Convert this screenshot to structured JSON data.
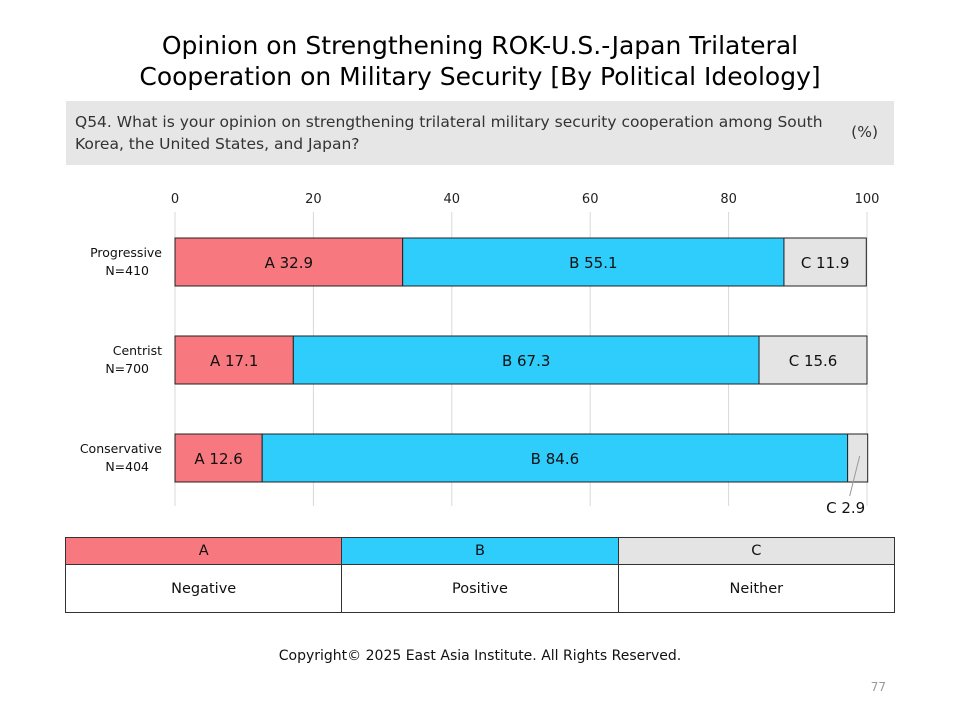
{
  "title": {
    "line1": "Opinion on Strengthening ROK-U.S.-Japan Trilateral",
    "line2": "Cooperation on Military Security [By Political Ideology]"
  },
  "question": {
    "text": "Q54. What is your opinion on strengthening trilateral military security cooperation among South Korea, the United States, and Japan?",
    "unit": "(%)"
  },
  "chart_data": {
    "type": "bar",
    "orientation": "horizontal",
    "stacked": true,
    "xlim": [
      0,
      100
    ],
    "xticks": [
      "0",
      "20",
      "40",
      "60",
      "80",
      "100"
    ],
    "grid": true,
    "categories": [
      {
        "label": "Progressive",
        "n": "N=410"
      },
      {
        "label": "Centrist",
        "n": "N=700"
      },
      {
        "label": "Conservative",
        "n": "N=404"
      }
    ],
    "series": [
      {
        "name": "A",
        "color": "#f7787f",
        "values": [
          32.9,
          17.1,
          12.6
        ]
      },
      {
        "name": "B",
        "color": "#2ecdfb",
        "values": [
          55.1,
          67.3,
          84.6
        ]
      },
      {
        "name": "C",
        "color": "#e4e4e4",
        "values": [
          11.9,
          15.6,
          2.9
        ]
      }
    ]
  },
  "legend": {
    "headers": [
      {
        "label": "A",
        "color": "#f7787f"
      },
      {
        "label": "B",
        "color": "#2ecdfb"
      },
      {
        "label": "C",
        "color": "#e4e4e4"
      }
    ],
    "descriptions": [
      "Negative",
      "Positive",
      "Neither"
    ]
  },
  "footer": {
    "copyright": "Copyright© 2025 East Asia Institute. All Rights Reserved.",
    "page_number": "77"
  }
}
